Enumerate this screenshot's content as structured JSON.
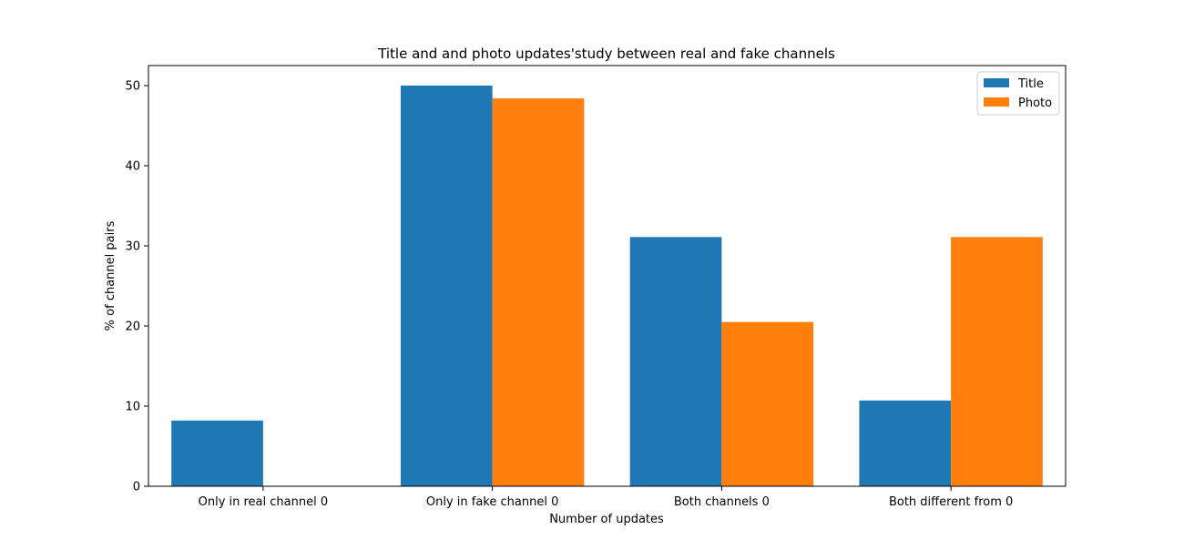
{
  "chart_data": {
    "type": "bar",
    "title": "Title and and photo updates'study between real and fake channels",
    "xlabel": "Number of updates",
    "ylabel": "% of channel pairs",
    "categories": [
      "Only in real channel 0",
      "Only in fake channel 0",
      "Both channels 0",
      "Both different from 0"
    ],
    "series": [
      {
        "name": "Title",
        "color": "#1f77b4",
        "values": [
          8.2,
          50.0,
          31.1,
          10.7
        ]
      },
      {
        "name": "Photo",
        "color": "#ff7f0e",
        "values": [
          0.0,
          48.4,
          20.5,
          31.1
        ]
      }
    ],
    "ylim": [
      0,
      52.5
    ],
    "yticks": [
      0,
      10,
      20,
      30,
      40,
      50
    ],
    "grid": false,
    "legend_position": "top-right"
  }
}
